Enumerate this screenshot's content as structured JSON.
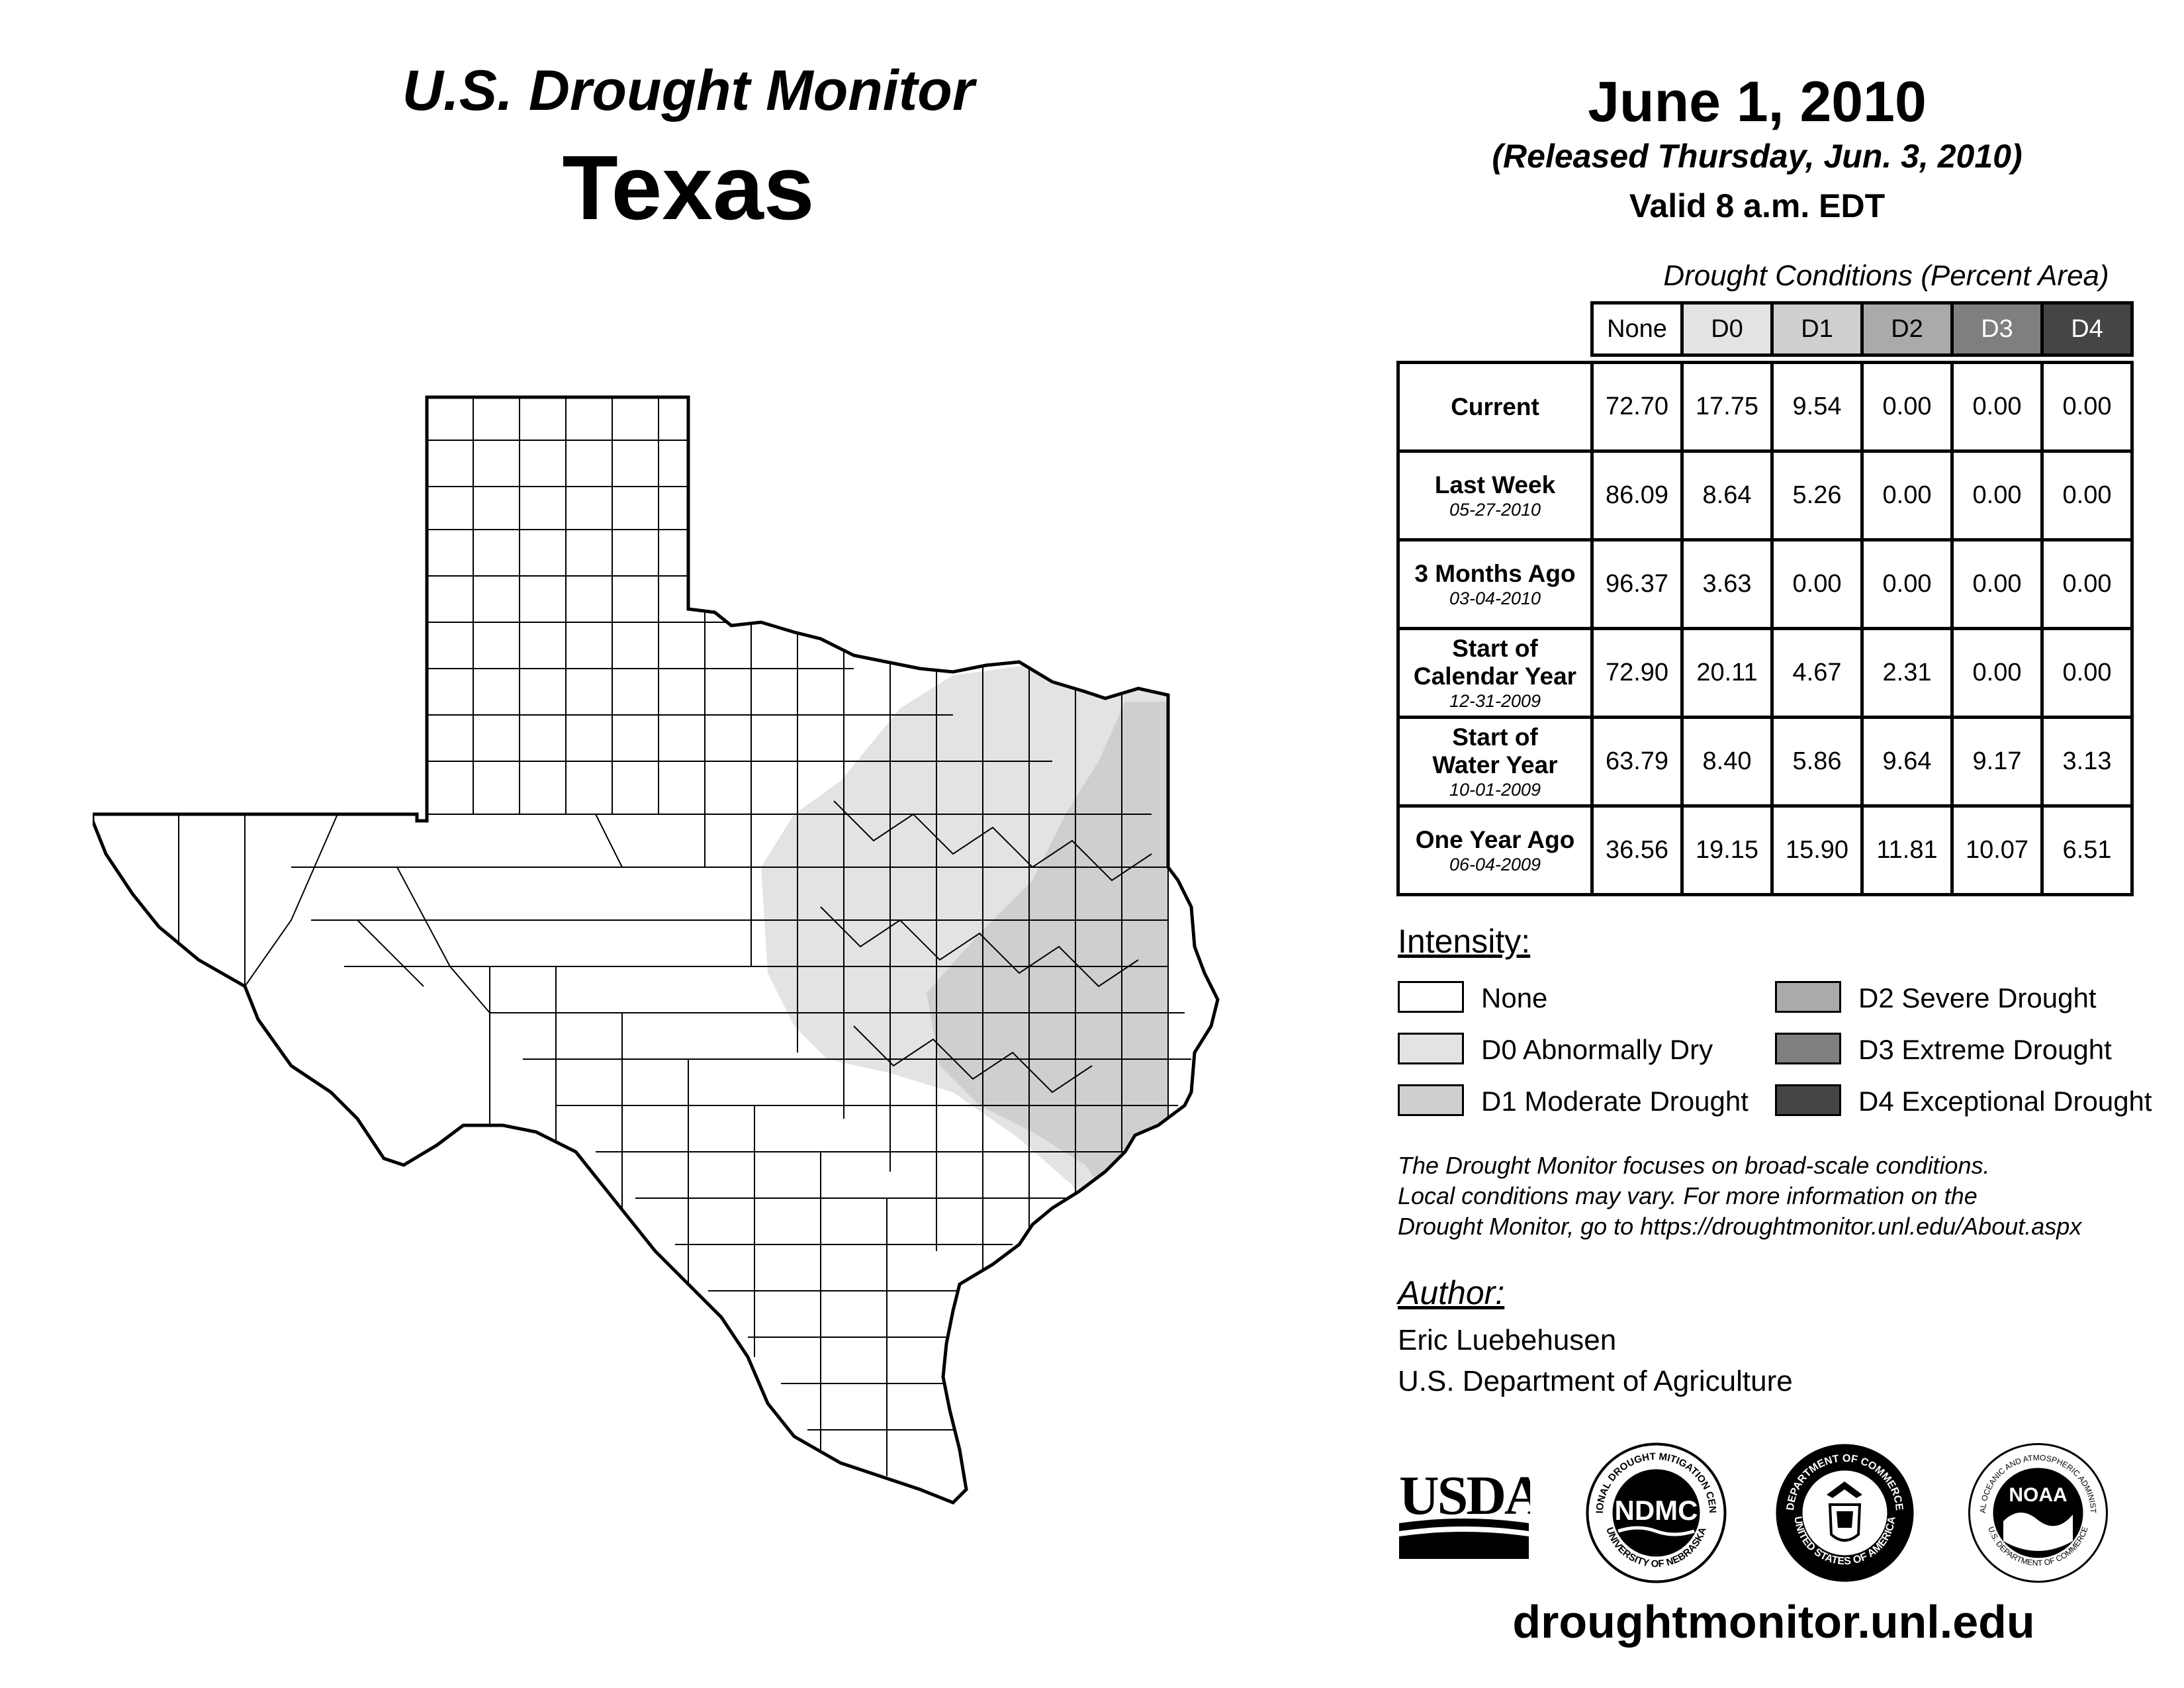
{
  "header": {
    "series_title": "U.S. Drought Monitor",
    "state": "Texas",
    "date": "June 1, 2010",
    "release": "(Released Thursday, Jun. 3, 2010)",
    "valid": "Valid 8 a.m. EDT"
  },
  "table": {
    "caption": "Drought Conditions (Percent Area)",
    "columns": [
      "None",
      "D0",
      "D1",
      "D2",
      "D3",
      "D4"
    ],
    "column_colors": [
      "#ffffff",
      "#e3e3e3",
      "#cfcfcf",
      "#aaaaaa",
      "#7f7f7f",
      "#454545"
    ],
    "column_text_colors": [
      "#000000",
      "#000000",
      "#000000",
      "#000000",
      "#ffffff",
      "#ffffff"
    ],
    "rows": [
      {
        "label": "Current",
        "sub": "",
        "values": [
          "72.70",
          "17.75",
          "9.54",
          "0.00",
          "0.00",
          "0.00"
        ]
      },
      {
        "label": "Last Week",
        "sub": "05-27-2010",
        "values": [
          "86.09",
          "8.64",
          "5.26",
          "0.00",
          "0.00",
          "0.00"
        ]
      },
      {
        "label": "3 Months Ago",
        "sub": "03-04-2010",
        "values": [
          "96.37",
          "3.63",
          "0.00",
          "0.00",
          "0.00",
          "0.00"
        ]
      },
      {
        "label": "Start of Calendar Year",
        "sub": "12-31-2009",
        "values": [
          "72.90",
          "20.11",
          "4.67",
          "2.31",
          "0.00",
          "0.00"
        ]
      },
      {
        "label": "Start of Water Year",
        "sub": "10-01-2009",
        "values": [
          "63.79",
          "8.40",
          "5.86",
          "9.64",
          "9.17",
          "3.13"
        ]
      },
      {
        "label": "One Year Ago",
        "sub": "06-04-2009",
        "values": [
          "36.56",
          "19.15",
          "15.90",
          "11.81",
          "10.07",
          "6.51"
        ]
      }
    ]
  },
  "legend": {
    "title": "Intensity:",
    "items": [
      {
        "label": "None",
        "color": "#ffffff"
      },
      {
        "label": "D0 Abnormally Dry",
        "color": "#e3e3e3"
      },
      {
        "label": "D1 Moderate Drought",
        "color": "#cfcfcf"
      },
      {
        "label": "D2 Severe Drought",
        "color": "#aaaaaa"
      },
      {
        "label": "D3 Extreme Drought",
        "color": "#7f7f7f"
      },
      {
        "label": "D4 Exceptional Drought",
        "color": "#454545"
      }
    ]
  },
  "note": {
    "line1": "The Drought Monitor focuses on broad-scale conditions.",
    "line2": "Local conditions may vary. For more information on the",
    "line3": "Drought Monitor, go to https://droughtmonitor.unl.edu/About.aspx"
  },
  "author": {
    "title": "Author:",
    "name": "Eric Luebehusen",
    "org": "U.S. Department of Agriculture"
  },
  "logos": {
    "usda": "USDA",
    "ndmc": "NDMC",
    "ndmc_ring_top": "NATIONAL DROUGHT MITIGATION CENTER",
    "ndmc_ring_bottom": "UNIVERSITY OF NEBRASKA",
    "commerce_ring_top": "DEPARTMENT OF COMMERCE",
    "commerce_ring_bottom": "UNITED STATES OF AMERICA",
    "noaa": "NOAA",
    "noaa_ring_top": "NATIONAL OCEANIC AND ATMOSPHERIC ADMINISTRATION",
    "noaa_ring_bottom": "U.S. DEPARTMENT OF COMMERCE"
  },
  "website": "droughtmonitor.unl.edu"
}
